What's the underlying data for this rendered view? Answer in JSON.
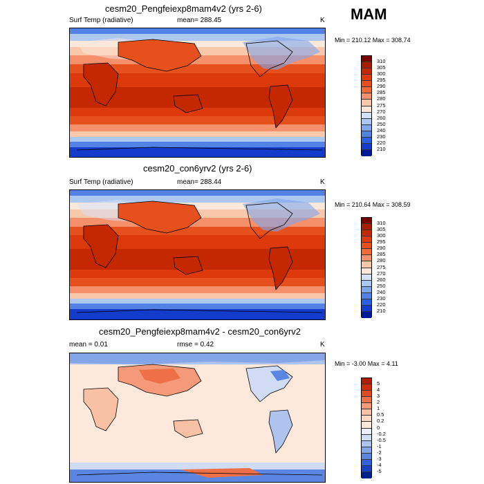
{
  "page_title": "MAM",
  "panels": [
    {
      "title": "cesm20_Pengfeiexp8mam4v2 (yrs 2-6)",
      "left_label": "Surf Temp (radiative)",
      "center_label": "mean= 288.45",
      "right_label": "K",
      "minmax": "Min = 210.12 Max = 308.74",
      "colorbar": {
        "labels": [
          "310",
          "305",
          "300",
          "295",
          "290",
          "285",
          "280",
          "275",
          "270",
          "260",
          "250",
          "240",
          "230",
          "220",
          "210"
        ],
        "colors": [
          "#7a0000",
          "#a81c00",
          "#c42800",
          "#dc3a0a",
          "#e6501c",
          "#f06a34",
          "#f6906a",
          "#f9c8aa",
          "#fbe8da",
          "#d4e2f8",
          "#acc8f2",
          "#7ea6ec",
          "#5282e6",
          "#2c5ee0",
          "#143ccc",
          "#001a96"
        ]
      }
    },
    {
      "title": "cesm20_con6yrv2 (yrs 2-6)",
      "left_label": "Surf Temp (radiative)",
      "center_label": "mean= 288.44",
      "right_label": "K",
      "minmax": "Min = 210.64 Max = 308.59",
      "colorbar": {
        "labels": [
          "310",
          "305",
          "300",
          "295",
          "290",
          "285",
          "280",
          "275",
          "270",
          "260",
          "250",
          "240",
          "230",
          "220",
          "210"
        ],
        "colors": [
          "#7a0000",
          "#a81c00",
          "#c42800",
          "#dc3a0a",
          "#e6501c",
          "#f06a34",
          "#f6906a",
          "#f9c8aa",
          "#fbe8da",
          "#d4e2f8",
          "#acc8f2",
          "#7ea6ec",
          "#5282e6",
          "#2c5ee0",
          "#143ccc",
          "#001a96"
        ]
      }
    },
    {
      "title": "cesm20_Pengfeiexp8mam4v2 - cesm20_con6yrv2",
      "left_label": "mean =   0.01",
      "center_label": "rmse =   0.42",
      "right_label": "K",
      "minmax": "Min =  -3.00 Max =   4.11",
      "colorbar": {
        "labels": [
          "5",
          "4",
          "3",
          "2",
          "1",
          "0.5",
          "0.2",
          "0",
          "-0.2",
          "-0.5",
          "-1",
          "-2",
          "-3",
          "-4",
          "-5"
        ],
        "colors": [
          "#b01e00",
          "#cc2c08",
          "#e04a20",
          "#ee7048",
          "#f49a78",
          "#f8c0a4",
          "#fbd8c4",
          "#fde8dc",
          "#eaf0fa",
          "#cfdcf4",
          "#aec4ee",
          "#84a6e8",
          "#5a86e2",
          "#3462da",
          "#1a40c4",
          "#00208c"
        ]
      }
    }
  ]
}
